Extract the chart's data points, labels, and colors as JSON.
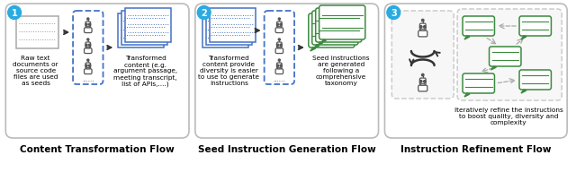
{
  "panel1": {
    "title": "Content Transformation Flow",
    "badge": "1",
    "badge_color": "#29ABE2",
    "text1": "Raw text\ndocuments or\nsource code\nfiles are used\nas seeds",
    "text2": "Transformed\ncontent (e.g.\nargument passage,\nmeeting transcript,\nlist of APIs,....)"
  },
  "panel2": {
    "title": "Seed Instruction Generation Flow",
    "badge": "2",
    "badge_color": "#29ABE2",
    "text1": "Transformed\ncontent provide\ndiversity is easier\nto use to generate\ninstructions",
    "text2": "Seed instructions\nare generated\nfollowing a\ncomprehensive\ntaxonomy"
  },
  "panel3": {
    "title": "Instruction Refinement Flow",
    "badge": "3",
    "badge_color": "#29ABE2",
    "text1": "Iteratively refine the instructions\nto boost quality, diversity and\ncomplexity"
  },
  "background": "#FFFFFF",
  "blue": "#4472C4",
  "blue_light": "#6FA0D8",
  "green": "#3B8A3E",
  "robot_color": "#555555",
  "gray_border": "#BBBBBB",
  "gray_dash": "#AAAAAA"
}
